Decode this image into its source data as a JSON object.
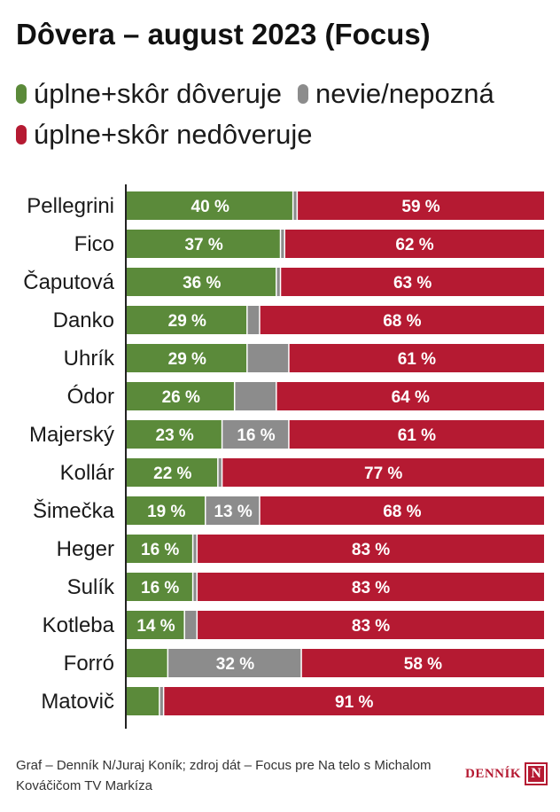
{
  "title": "Dôvera – august 2023 (Focus)",
  "legend": [
    {
      "label": "úplne+skôr dôveruje",
      "color": "#5b8a3a"
    },
    {
      "label": "nevie/nepozná",
      "color": "#8c8c8c"
    },
    {
      "label": "úplne+skôr nedôveruje",
      "color": "#b51a32"
    }
  ],
  "footer": "Graf – Denník N/Juraj Koník; zdroj dát – Focus pre Na telo s Michalom Kováčičom TV Markíza",
  "logo": {
    "text": "DENNÍK",
    "mark": "N"
  },
  "chart_data": {
    "type": "bar",
    "orientation": "horizontal",
    "stacked": true,
    "xlim": [
      0,
      100
    ],
    "categories": [
      "Pellegrini",
      "Fico",
      "Čaputová",
      "Danko",
      "Uhrík",
      "Ódor",
      "Majerský",
      "Kollár",
      "Šimečka",
      "Heger",
      "Sulík",
      "Kotleba",
      "Forró",
      "Matovič"
    ],
    "series": [
      {
        "name": "úplne+skôr dôveruje",
        "color": "#5b8a3a",
        "values": [
          40,
          37,
          36,
          29,
          29,
          26,
          23,
          22,
          19,
          16,
          16,
          14,
          10,
          8
        ],
        "labels": [
          "40 %",
          "37 %",
          "36 %",
          "29 %",
          "29 %",
          "26 %",
          "23 %",
          "22 %",
          "19 %",
          "16 %",
          "16 %",
          "14 %",
          "",
          ""
        ]
      },
      {
        "name": "nevie/nepozná",
        "color": "#8c8c8c",
        "values": [
          1,
          1,
          1,
          3,
          10,
          10,
          16,
          1,
          13,
          1,
          1,
          3,
          32,
          1
        ],
        "labels": [
          "",
          "",
          "",
          "",
          "",
          "",
          "16 %",
          "",
          "13 %",
          "",
          "",
          "",
          "32 %",
          ""
        ]
      },
      {
        "name": "úplne+skôr nedôveruje",
        "color": "#b51a32",
        "values": [
          59,
          62,
          63,
          68,
          61,
          64,
          61,
          77,
          68,
          83,
          83,
          83,
          58,
          91
        ],
        "labels": [
          "59 %",
          "62 %",
          "63 %",
          "68 %",
          "61 %",
          "64 %",
          "61 %",
          "77 %",
          "68 %",
          "83 %",
          "83 %",
          "83 %",
          "58 %",
          "91 %"
        ]
      }
    ]
  }
}
